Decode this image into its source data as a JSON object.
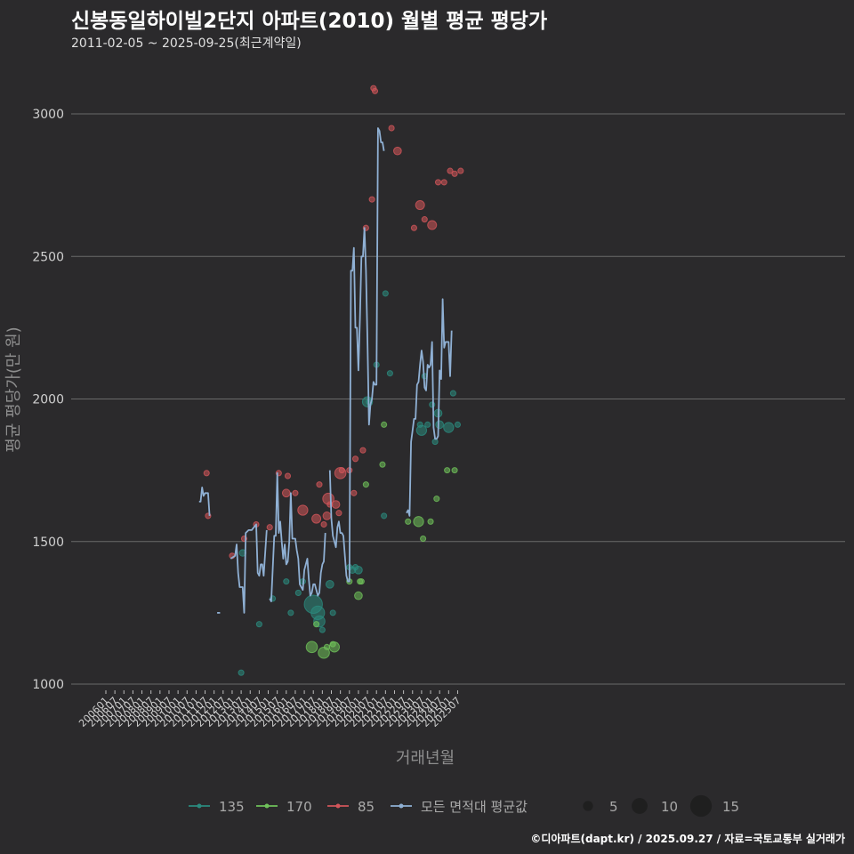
{
  "chart_data": {
    "type": "scatter",
    "title": "신봉동일하이빌2단지 아파트(2010) 월별 평균 평당가",
    "subtitle": "2011-02-05 ~ 2025-09-25(최근계약일)",
    "caption": "©디아파트(dapt.kr) / 2025.09.27 / 자료=국토교통부 실거래가",
    "xlabel": "거래년월",
    "ylabel": "평균 평당가(만 원)",
    "ylim": [
      940,
      3160
    ],
    "yticks": [
      1000,
      1500,
      2000,
      2500,
      3000
    ],
    "x_start": "2006-01",
    "x_end": "2025-09",
    "x_tick_labels": [
      "200601",
      "200607",
      "200701",
      "200707",
      "200801",
      "200807",
      "200901",
      "200907",
      "201001",
      "201007",
      "201101",
      "201107",
      "201201",
      "201207",
      "201301",
      "201307",
      "201401",
      "201407",
      "201501",
      "201507",
      "201601",
      "201607",
      "201701",
      "201707",
      "201801",
      "201807",
      "201901",
      "201907",
      "202001",
      "202007",
      "202101",
      "202107",
      "202201",
      "202207",
      "202301",
      "202307",
      "202401",
      "202407",
      "202501",
      "202507"
    ],
    "grid": true,
    "colors": {
      "135": "#2b8a7e",
      "170": "#6fc15a",
      "85": "#d2555a",
      "avg": "#8fb0d4"
    },
    "series": [
      {
        "name": "135",
        "points": [
          [
            "2013-08",
            1460,
            2
          ],
          [
            "2013-07",
            1040,
            1
          ],
          [
            "2014-07",
            1210,
            1
          ],
          [
            "2015-04",
            1300,
            1
          ],
          [
            "2016-01",
            1360,
            1
          ],
          [
            "2016-04",
            1250,
            1
          ],
          [
            "2016-09",
            1320,
            1
          ],
          [
            "2016-12",
            1360,
            1
          ],
          [
            "2017-07",
            1280,
            12
          ],
          [
            "2017-10",
            1250,
            8
          ],
          [
            "2017-11",
            1220,
            6
          ],
          [
            "2018-01",
            1190,
            1
          ],
          [
            "2018-06",
            1350,
            3
          ],
          [
            "2018-08",
            1250,
            1
          ],
          [
            "2019-07",
            1410,
            1
          ],
          [
            "2019-09",
            1400,
            2
          ],
          [
            "2019-11",
            1410,
            1
          ],
          [
            "2020-01",
            1400,
            3
          ],
          [
            "2020-07",
            1990,
            5
          ],
          [
            "2020-08",
            1990,
            1
          ],
          [
            "2021-01",
            2120,
            1
          ],
          [
            "2021-06",
            1590,
            1
          ],
          [
            "2021-07",
            2370,
            1
          ],
          [
            "2021-10",
            2090,
            1
          ],
          [
            "2023-06",
            1910,
            1
          ],
          [
            "2023-07",
            1890,
            5
          ],
          [
            "2023-09",
            2080,
            1
          ],
          [
            "2023-11",
            1910,
            1
          ],
          [
            "2024-02",
            1980,
            1
          ],
          [
            "2024-04",
            1850,
            1
          ],
          [
            "2024-06",
            1950,
            3
          ],
          [
            "2024-07",
            1910,
            3
          ],
          [
            "2025-01",
            1900,
            5
          ],
          [
            "2025-04",
            2020,
            1
          ],
          [
            "2025-07",
            1910,
            1
          ]
        ]
      },
      {
        "name": "170",
        "points": [
          [
            "2017-06",
            1130,
            6
          ],
          [
            "2017-09",
            1210,
            1
          ],
          [
            "2018-02",
            1110,
            6
          ],
          [
            "2018-04",
            1130,
            1
          ],
          [
            "2018-08",
            1140,
            1
          ],
          [
            "2018-09",
            1130,
            5
          ],
          [
            "2019-07",
            1360,
            1
          ],
          [
            "2020-01",
            1310,
            3
          ],
          [
            "2020-02",
            1360,
            1
          ],
          [
            "2020-03",
            1360,
            1
          ],
          [
            "2020-06",
            1700,
            1
          ],
          [
            "2021-05",
            1770,
            1
          ],
          [
            "2021-06",
            1910,
            1
          ],
          [
            "2022-10",
            1570,
            1
          ],
          [
            "2023-05",
            1570,
            5
          ],
          [
            "2023-08",
            1510,
            1
          ],
          [
            "2024-01",
            1570,
            1
          ],
          [
            "2024-05",
            1650,
            1
          ],
          [
            "2024-12",
            1750,
            1
          ],
          [
            "2025-05",
            1750,
            1
          ]
        ]
      },
      {
        "name": "85",
        "points": [
          [
            "2011-08",
            1740,
            1
          ],
          [
            "2011-09",
            1590,
            1
          ],
          [
            "2013-01",
            1450,
            1
          ],
          [
            "2013-09",
            1510,
            1
          ],
          [
            "2014-05",
            1560,
            1
          ],
          [
            "2015-02",
            1550,
            1
          ],
          [
            "2015-08",
            1740,
            1
          ],
          [
            "2016-01",
            1670,
            3
          ],
          [
            "2016-02",
            1730,
            1
          ],
          [
            "2016-07",
            1670,
            1
          ],
          [
            "2016-12",
            1610,
            5
          ],
          [
            "2017-09",
            1580,
            4
          ],
          [
            "2017-11",
            1700,
            1
          ],
          [
            "2018-02",
            1560,
            1
          ],
          [
            "2018-04",
            1590,
            3
          ],
          [
            "2018-05",
            1650,
            6
          ],
          [
            "2018-06",
            1630,
            1
          ],
          [
            "2018-10",
            1630,
            3
          ],
          [
            "2018-12",
            1600,
            1
          ],
          [
            "2019-01",
            1740,
            6
          ],
          [
            "2019-02",
            1750,
            1
          ],
          [
            "2019-07",
            1750,
            1
          ],
          [
            "2019-10",
            1670,
            1
          ],
          [
            "2019-11",
            1790,
            1
          ],
          [
            "2020-04",
            1820,
            1
          ],
          [
            "2020-06",
            2600,
            1
          ],
          [
            "2020-10",
            2700,
            1
          ],
          [
            "2020-11",
            3090,
            1
          ],
          [
            "2020-12",
            3080,
            1
          ],
          [
            "2021-11",
            2950,
            1
          ],
          [
            "2022-03",
            2870,
            3
          ],
          [
            "2023-02",
            2600,
            1
          ],
          [
            "2023-06",
            2680,
            4
          ],
          [
            "2023-09",
            2630,
            1
          ],
          [
            "2024-02",
            2610,
            4
          ],
          [
            "2024-06",
            2760,
            1
          ],
          [
            "2024-10",
            2760,
            1
          ],
          [
            "2025-02",
            2800,
            1
          ],
          [
            "2025-05",
            2790,
            1
          ],
          [
            "2025-09",
            2800,
            1
          ]
        ]
      }
    ],
    "average_line": [
      [
        [
          "2011-03",
          1640
        ],
        [
          "2011-04",
          1640
        ],
        [
          "2011-05",
          1690
        ],
        [
          "2011-06",
          1660
        ],
        [
          "2011-07",
          1670
        ],
        [
          "2011-09",
          1670
        ],
        [
          "2011-10",
          1590
        ]
      ],
      [
        [
          "2012-03",
          1250
        ],
        [
          "2012-05",
          1250
        ]
      ],
      [
        [
          "2012-12",
          1440
        ],
        [
          "2013-03",
          1450
        ],
        [
          "2013-04",
          1490
        ],
        [
          "2013-05",
          1390
        ],
        [
          "2013-06",
          1340
        ],
        [
          "2013-08",
          1340
        ],
        [
          "2013-09",
          1250
        ],
        [
          "2013-10",
          1530
        ],
        [
          "2013-12",
          1540
        ],
        [
          "2014-02",
          1540
        ],
        [
          "2014-05",
          1560
        ],
        [
          "2014-06",
          1390
        ],
        [
          "2014-07",
          1380
        ],
        [
          "2014-08",
          1420
        ],
        [
          "2014-09",
          1420
        ],
        [
          "2014-10",
          1380
        ],
        [
          "2014-12",
          1540
        ]
      ],
      [
        [
          "2015-02",
          1300
        ],
        [
          "2015-03",
          1290
        ],
        [
          "2015-05",
          1520
        ],
        [
          "2015-06",
          1520
        ],
        [
          "2015-07",
          1740
        ],
        [
          "2015-08",
          1530
        ],
        [
          "2015-09",
          1570
        ],
        [
          "2015-10",
          1500
        ],
        [
          "2015-11",
          1440
        ],
        [
          "2015-12",
          1490
        ],
        [
          "2016-01",
          1420
        ],
        [
          "2016-02",
          1430
        ],
        [
          "2016-03",
          1500
        ],
        [
          "2016-04",
          1670
        ],
        [
          "2016-05",
          1510
        ],
        [
          "2016-07",
          1510
        ],
        [
          "2016-08",
          1470
        ],
        [
          "2016-09",
          1440
        ],
        [
          "2016-10",
          1350
        ],
        [
          "2016-12",
          1330
        ],
        [
          "2017-01",
          1400
        ],
        [
          "2017-02",
          1420
        ],
        [
          "2017-03",
          1440
        ],
        [
          "2017-04",
          1370
        ],
        [
          "2017-05",
          1310
        ],
        [
          "2017-06",
          1320
        ],
        [
          "2017-07",
          1350
        ],
        [
          "2017-08",
          1350
        ],
        [
          "2017-09",
          1330
        ],
        [
          "2017-10",
          1310
        ],
        [
          "2017-11",
          1320
        ],
        [
          "2017-12",
          1390
        ],
        [
          "2018-01",
          1420
        ],
        [
          "2018-02",
          1430
        ],
        [
          "2018-03",
          1530
        ]
      ],
      [
        [
          "2018-06",
          1750
        ],
        [
          "2018-07",
          1580
        ],
        [
          "2018-08",
          1520
        ],
        [
          "2018-09",
          1500
        ],
        [
          "2018-10",
          1480
        ],
        [
          "2018-11",
          1550
        ],
        [
          "2018-12",
          1570
        ],
        [
          "2019-01",
          1530
        ],
        [
          "2019-02",
          1530
        ],
        [
          "2019-03",
          1520
        ],
        [
          "2019-05",
          1380
        ],
        [
          "2019-06",
          1360
        ],
        [
          "2019-07",
          1360
        ],
        [
          "2019-08",
          2450
        ],
        [
          "2019-09",
          2450
        ],
        [
          "2019-10",
          2530
        ],
        [
          "2019-11",
          2250
        ],
        [
          "2019-12",
          2250
        ],
        [
          "2020-01",
          2100
        ],
        [
          "2020-02",
          2280
        ],
        [
          "2020-03",
          2500
        ],
        [
          "2020-04",
          2500
        ],
        [
          "2020-05",
          2600
        ],
        [
          "2020-06",
          2450
        ],
        [
          "2020-07",
          2200
        ],
        [
          "2020-08",
          1910
        ],
        [
          "2020-09",
          1980
        ],
        [
          "2020-10",
          2000
        ],
        [
          "2020-11",
          2060
        ],
        [
          "2020-12",
          2050
        ],
        [
          "2021-01",
          2050
        ],
        [
          "2021-02",
          2950
        ],
        [
          "2021-03",
          2940
        ],
        [
          "2021-04",
          2900
        ],
        [
          "2021-05",
          2900
        ],
        [
          "2021-06",
          2870
        ]
      ],
      [
        [
          "2022-09",
          1600
        ],
        [
          "2022-10",
          1610
        ],
        [
          "2022-11",
          1590
        ],
        [
          "2022-12",
          1850
        ],
        [
          "2023-01",
          1890
        ],
        [
          "2023-02",
          1930
        ],
        [
          "2023-03",
          1930
        ],
        [
          "2023-04",
          2050
        ],
        [
          "2023-05",
          2060
        ],
        [
          "2023-06",
          2120
        ],
        [
          "2023-07",
          2170
        ],
        [
          "2023-08",
          2130
        ],
        [
          "2023-09",
          2040
        ],
        [
          "2023-10",
          2030
        ],
        [
          "2023-11",
          2120
        ],
        [
          "2023-12",
          2110
        ],
        [
          "2024-01",
          2120
        ],
        [
          "2024-02",
          2200
        ],
        [
          "2024-03",
          1900
        ],
        [
          "2024-04",
          1860
        ],
        [
          "2024-05",
          1860
        ],
        [
          "2024-06",
          1870
        ],
        [
          "2024-07",
          2100
        ],
        [
          "2024-08",
          2070
        ],
        [
          "2024-09",
          2350
        ],
        [
          "2024-10",
          2180
        ],
        [
          "2024-11",
          2200
        ],
        [
          "2024-12",
          2200
        ],
        [
          "2025-01",
          2200
        ],
        [
          "2025-02",
          2080
        ],
        [
          "2025-03",
          2240
        ]
      ]
    ],
    "legend": {
      "series_labels": [
        "135",
        "170",
        "85",
        "모든 면적대 평균값"
      ],
      "size_labels": [
        "5",
        "10",
        "15"
      ],
      "size_values": [
        5,
        10,
        15
      ]
    }
  }
}
